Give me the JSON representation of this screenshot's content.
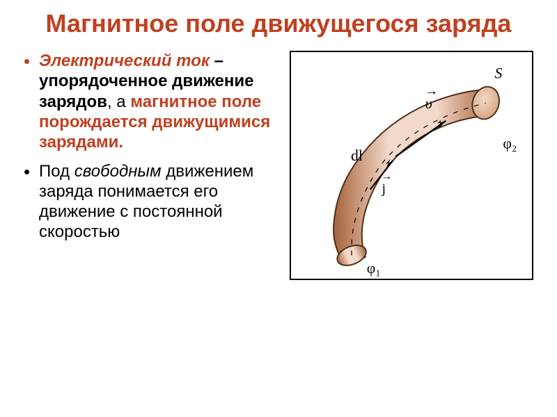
{
  "colors": {
    "title": "#c04020",
    "accent": "#c04020",
    "body": "#000000",
    "bullet1": "#c04020",
    "bullet2": "#000000",
    "conductor_light": "#f2d9c9",
    "conductor_mid": "#d4a078",
    "conductor_dark": "#a6623b",
    "conductor_outline": "#4a2f1a"
  },
  "title": "Магнитное поле движущегося заряда",
  "bullets": [
    {
      "parts": [
        {
          "text": "Электрический ток",
          "cls": "term-emph accent"
        },
        {
          "text": " – ",
          "cls": "term-bold"
        },
        {
          "text": "упорядоченное движение зарядов",
          "cls": "term-bold"
        },
        {
          "text": ",  а ",
          "cls": ""
        },
        {
          "text": "магнитное поле порождается движущимися зарядами.",
          "cls": "term-bold accent"
        }
      ]
    },
    {
      "parts": [
        {
          "text": "Под ",
          "cls": ""
        },
        {
          "text": "свободным",
          "cls": "term-ital"
        },
        {
          "text": " движением заряда понимается его движение с постоянной скоростью",
          "cls": ""
        }
      ]
    }
  ],
  "diagram": {
    "labels": {
      "S": "S",
      "v": "υ",
      "v_arrow": "→",
      "dl": "dl",
      "j": "j",
      "j_arrow": "→",
      "phi1": "φ₁",
      "phi2": "φ₂"
    },
    "label_fontsize": 22,
    "label_fontsize_small": 20,
    "font_family": "Times New Roman, serif"
  }
}
